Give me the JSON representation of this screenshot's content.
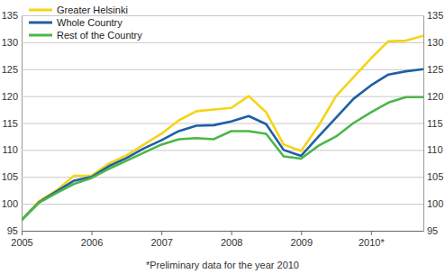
{
  "chart_data": {
    "type": "line",
    "categories": [
      "2005",
      null,
      null,
      null,
      "2006",
      null,
      null,
      null,
      "2007",
      null,
      null,
      null,
      "2008",
      null,
      null,
      null,
      "2009",
      null,
      null,
      null,
      "2010*",
      null,
      null,
      null
    ],
    "series": [
      {
        "name": "Greater Helsinki",
        "color": "#f5d415",
        "values": [
          97,
          100.5,
          102.5,
          105.2,
          105.2,
          107.5,
          109,
          111,
          113,
          115.5,
          117.2,
          117.5,
          117.8,
          120,
          117,
          111,
          109.8,
          114.5,
          120,
          123.5,
          127,
          130.2,
          130.3,
          131.2
        ]
      },
      {
        "name": "Whole Country",
        "color": "#1f5fa5",
        "values": [
          97,
          100.3,
          102.3,
          104.3,
          105,
          107,
          108.5,
          110.3,
          111.8,
          113.5,
          114.5,
          114.6,
          115.3,
          116.3,
          114.8,
          110,
          108.9,
          112.5,
          116,
          119.5,
          122,
          124,
          124.6,
          125
        ]
      },
      {
        "name": "Rest of the Country",
        "color": "#4cb648",
        "values": [
          97,
          100.2,
          102,
          103.7,
          104.8,
          106.5,
          108,
          109.5,
          111,
          112,
          112.2,
          112,
          113.5,
          113.5,
          113,
          108.8,
          108.4,
          110.8,
          112.5,
          115,
          117,
          118.8,
          119.8,
          119.8
        ]
      }
    ],
    "ylim": [
      95,
      135
    ],
    "yticks": [
      95,
      100,
      105,
      110,
      115,
      120,
      125,
      130,
      135
    ],
    "grid": true,
    "legend": "upper left",
    "annotations": [
      "*Preliminary data for the year 2010"
    ]
  }
}
